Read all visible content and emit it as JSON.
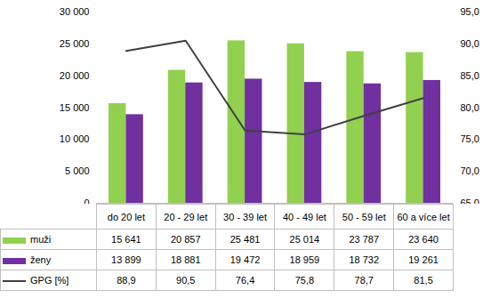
{
  "chart_data": {
    "type": "bar",
    "categories": [
      "do 20 let",
      "20 - 29 let",
      "30 - 39 let",
      "40 - 49 let",
      "50 - 59 let",
      "60 a více let"
    ],
    "series": [
      {
        "name": "muži",
        "color": "#92d050",
        "values": [
          15641,
          20857,
          25481,
          25014,
          23787,
          23640
        ],
        "value_labels": [
          "15 641",
          "20 857",
          "25 481",
          "25 014",
          "23 787",
          "23 640"
        ]
      },
      {
        "name": "ženy",
        "color": "#7030a0",
        "values": [
          13899,
          18881,
          19472,
          18959,
          18732,
          19261
        ],
        "value_labels": [
          "13 899",
          "18 881",
          "19 472",
          "18 959",
          "18 732",
          "19 261"
        ]
      },
      {
        "name": "GPG [%]",
        "type": "line",
        "axis": "y2",
        "color": "#404040",
        "values": [
          88.9,
          90.5,
          76.4,
          75.8,
          78.7,
          81.5
        ],
        "value_labels": [
          "88,9",
          "90,5",
          "76,4",
          "75,8",
          "78,7",
          "81,5"
        ]
      }
    ],
    "ylim": [
      0,
      30000
    ],
    "yticks": [
      0,
      {
        "value": 5000,
        "label": "5 000"
      },
      {
        "value": 10000,
        "label": "10 000"
      },
      {
        "value": 15000,
        "label": "15 000"
      },
      {
        "value": 20000,
        "label": "20 000"
      },
      {
        "value": 25000,
        "label": "25 000"
      },
      {
        "value": 30000,
        "label": "30 000"
      }
    ],
    "y2lim": [
      65,
      95
    ],
    "y2ticks": [
      {
        "value": 65,
        "label": "65,0"
      },
      {
        "value": 70,
        "label": "70,0"
      },
      {
        "value": 75,
        "label": "75,0"
      },
      {
        "value": 80,
        "label": "80,0"
      },
      {
        "value": 85,
        "label": "85,0"
      },
      {
        "value": 90,
        "label": "90,0"
      },
      {
        "value": 95,
        "label": "95,0"
      }
    ],
    "grid": false
  }
}
